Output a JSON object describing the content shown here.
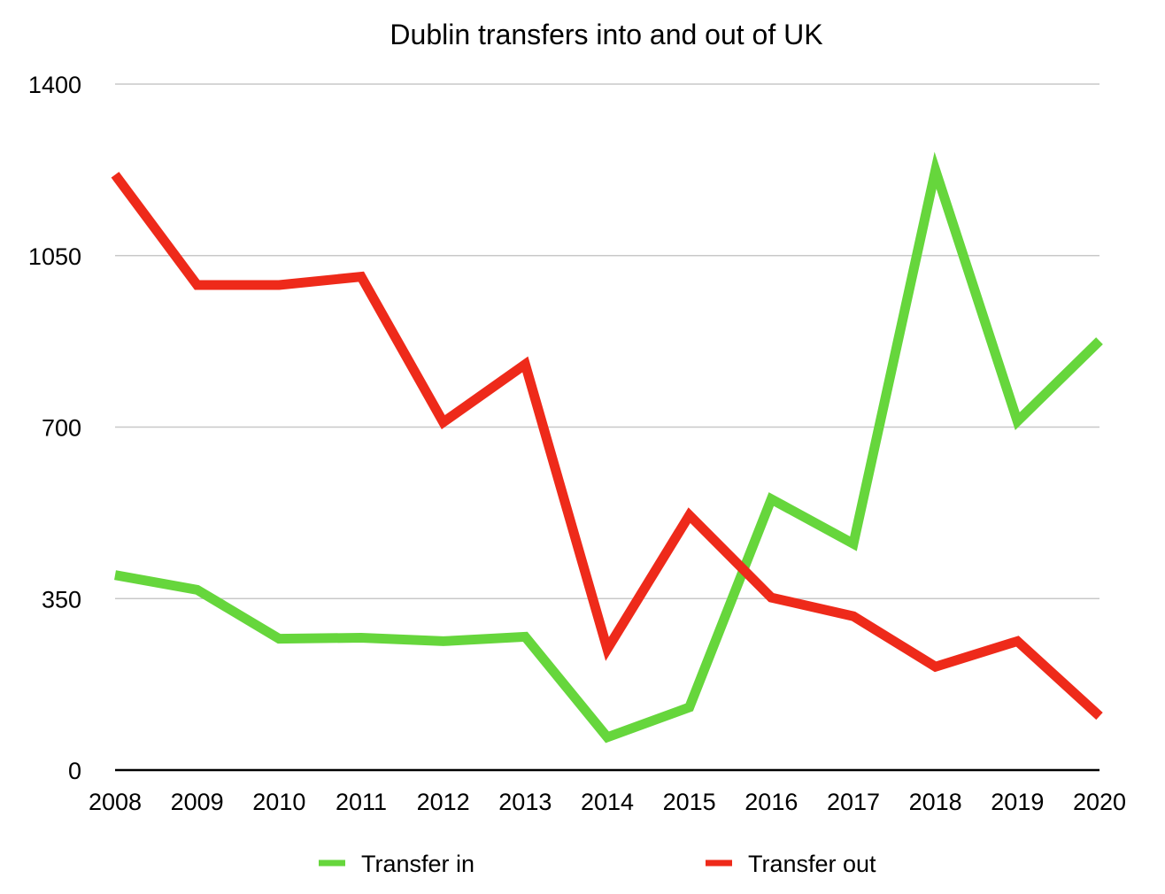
{
  "chart_data": {
    "type": "line",
    "title": "Dublin transfers into and out of UK",
    "xlabel": "",
    "ylabel": "",
    "categories": [
      "2008",
      "2009",
      "2010",
      "2011",
      "2012",
      "2013",
      "2014",
      "2015",
      "2016",
      "2017",
      "2018",
      "2019",
      "2020"
    ],
    "ylim": [
      0,
      1400
    ],
    "yticks": [
      0,
      350,
      700,
      1050,
      1400
    ],
    "ytick_labels": [
      "0",
      "350",
      "700",
      "1050",
      "1400"
    ],
    "grid": true,
    "legend_position": "bottom",
    "series": [
      {
        "name": "Transfer in",
        "color": "#66d63c",
        "values": [
          398,
          368,
          268,
          270,
          263,
          272,
          67,
          128,
          553,
          462,
          1224,
          712,
          876
        ]
      },
      {
        "name": "Transfer out",
        "color": "#ee2a1a",
        "values": [
          1215,
          990,
          990,
          1007,
          710,
          828,
          247,
          520,
          352,
          314,
          211,
          263,
          110
        ]
      }
    ]
  }
}
